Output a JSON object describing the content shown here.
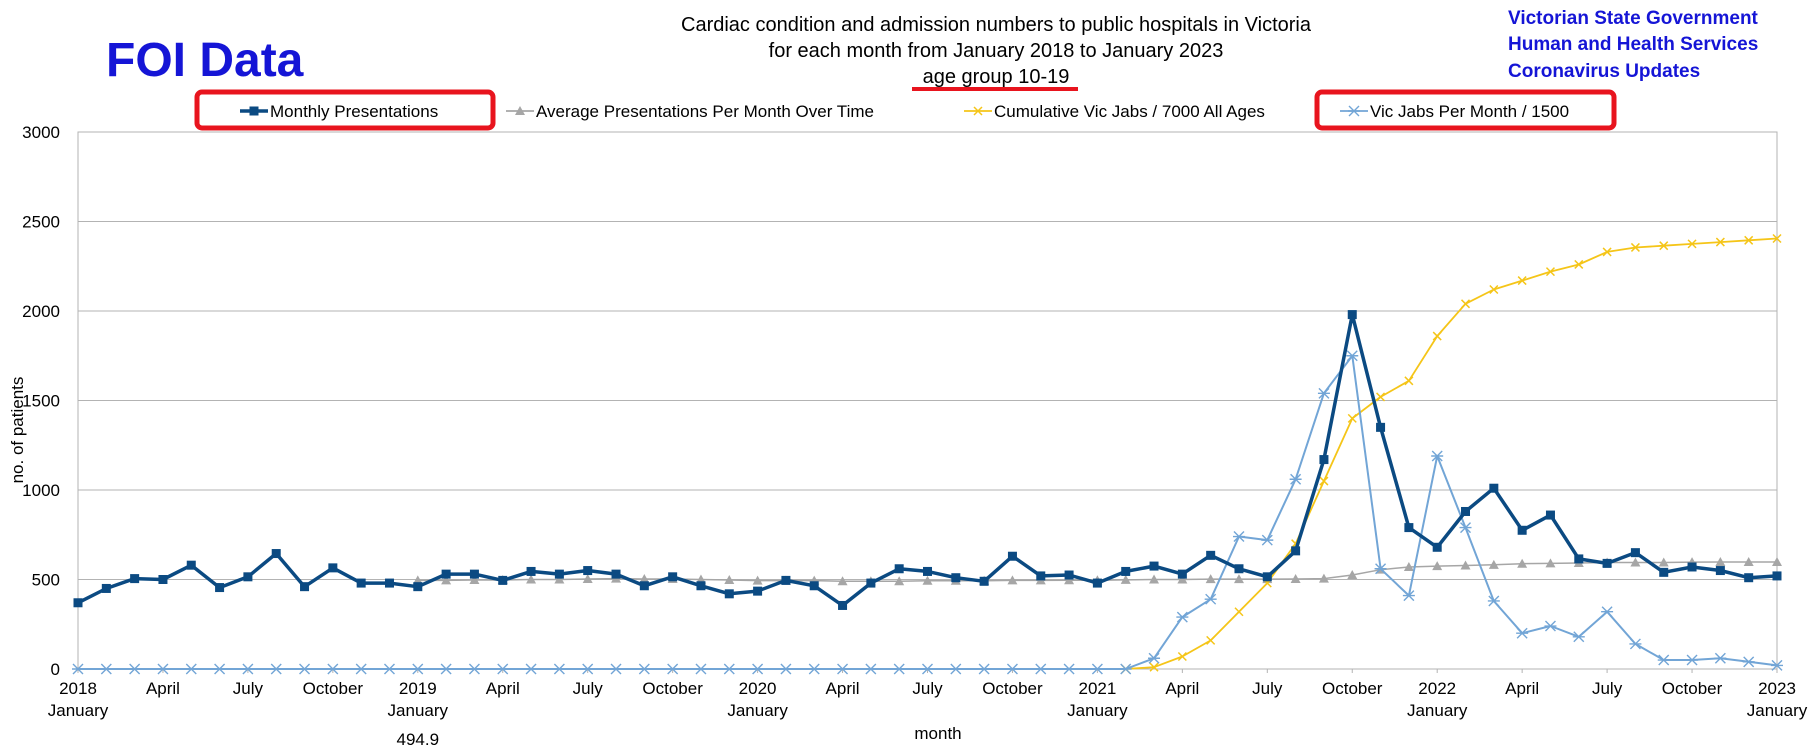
{
  "header": {
    "logo_text": "FOI Data",
    "title_lines": [
      "Cardiac condition and admission numbers to public hospitals in Victoria",
      "for each month from January 2018 to January 2023",
      "age group 10-19"
    ],
    "source_lines": [
      "Victorian State Government",
      "Human and Health Services",
      "Coronavirus Updates"
    ]
  },
  "colors": {
    "monthly": "#0b4a82",
    "average": "#a6a6a6",
    "cumulative": "#f5c518",
    "jabs": "#72a5d6",
    "highlight": "#e8141e",
    "brand": "#1515d6",
    "grid": "#b3b3b3"
  },
  "chart_data": {
    "type": "line",
    "xlabel": "month",
    "ylabel": "no. of patients",
    "ylim": [
      0,
      3000
    ],
    "y_ticks": [
      0,
      500,
      1000,
      1500,
      2000,
      2500,
      3000
    ],
    "grid": true,
    "legend_position": "top",
    "x_tick_labels": [
      {
        "index": 0,
        "lines": [
          "2018",
          "January"
        ]
      },
      {
        "index": 3,
        "lines": [
          "April"
        ]
      },
      {
        "index": 6,
        "lines": [
          "July"
        ]
      },
      {
        "index": 9,
        "lines": [
          "October"
        ]
      },
      {
        "index": 12,
        "lines": [
          "2019",
          "January"
        ]
      },
      {
        "index": 15,
        "lines": [
          "April"
        ]
      },
      {
        "index": 18,
        "lines": [
          "July"
        ]
      },
      {
        "index": 21,
        "lines": [
          "October"
        ]
      },
      {
        "index": 24,
        "lines": [
          "2020",
          "January"
        ]
      },
      {
        "index": 27,
        "lines": [
          "April"
        ]
      },
      {
        "index": 30,
        "lines": [
          "July"
        ]
      },
      {
        "index": 33,
        "lines": [
          "October"
        ]
      },
      {
        "index": 36,
        "lines": [
          "2021",
          "January"
        ]
      },
      {
        "index": 39,
        "lines": [
          "April"
        ]
      },
      {
        "index": 42,
        "lines": [
          "July"
        ]
      },
      {
        "index": 45,
        "lines": [
          "October"
        ]
      },
      {
        "index": 48,
        "lines": [
          "2022",
          "January"
        ]
      },
      {
        "index": 51,
        "lines": [
          "April"
        ]
      },
      {
        "index": 54,
        "lines": [
          "July"
        ]
      },
      {
        "index": 57,
        "lines": [
          "October"
        ]
      },
      {
        "index": 60,
        "lines": [
          "2023",
          "January"
        ]
      }
    ],
    "annotations": [
      {
        "text": "494.9",
        "x_index": 12
      }
    ],
    "series": [
      {
        "name": "Monthly Presentations",
        "color_key": "monthly",
        "marker": "square",
        "highlighted": true,
        "values": [
          370,
          450,
          505,
          500,
          580,
          455,
          515,
          645,
          460,
          565,
          480,
          480,
          460,
          530,
          530,
          495,
          545,
          530,
          550,
          530,
          465,
          515,
          465,
          420,
          435,
          495,
          465,
          355,
          480,
          560,
          545,
          510,
          490,
          630,
          520,
          525,
          480,
          545,
          575,
          530,
          635,
          560,
          515,
          660,
          1170,
          1980,
          1350,
          790,
          680,
          880,
          1010,
          775,
          860,
          615,
          590,
          650,
          540,
          570,
          550,
          510,
          520
        ]
      },
      {
        "name": "Average Presentations Per Month Over Time",
        "color_key": "average",
        "marker": "triangle",
        "highlighted": false,
        "start_index": 12,
        "values": [
          495,
          495,
          497,
          497,
          500,
          500,
          503,
          505,
          503,
          503,
          500,
          497,
          494,
          494,
          494,
          490,
          490,
          490,
          493,
          493,
          493,
          495,
          495,
          496,
          496,
          498,
          500,
          500,
          502,
          502,
          502,
          503,
          505,
          525,
          555,
          570,
          575,
          578,
          582,
          588,
          590,
          592,
          595,
          595,
          595,
          597,
          598,
          598,
          598
        ]
      },
      {
        "name": "Cumulative Vic Jabs / 7000 All Ages",
        "color_key": "cumulative",
        "marker": "x",
        "highlighted": false,
        "start_index": 37,
        "values": [
          0,
          10,
          70,
          160,
          320,
          480,
          700,
          1050,
          1400,
          1520,
          1610,
          1860,
          2040,
          2120,
          2170,
          2220,
          2260,
          2330,
          2355,
          2365,
          2375,
          2385,
          2395,
          2405
        ]
      },
      {
        "name": "Vic Jabs Per Month / 1500",
        "color_key": "jabs",
        "marker": "asterisk",
        "highlighted": true,
        "values": [
          0,
          0,
          0,
          0,
          0,
          0,
          0,
          0,
          0,
          0,
          0,
          0,
          0,
          0,
          0,
          0,
          0,
          0,
          0,
          0,
          0,
          0,
          0,
          0,
          0,
          0,
          0,
          0,
          0,
          0,
          0,
          0,
          0,
          0,
          0,
          0,
          0,
          0,
          60,
          290,
          390,
          740,
          720,
          1060,
          1540,
          1750,
          560,
          410,
          1190,
          790,
          380,
          200,
          240,
          180,
          320,
          140,
          50,
          50,
          60,
          40,
          20
        ]
      }
    ]
  }
}
